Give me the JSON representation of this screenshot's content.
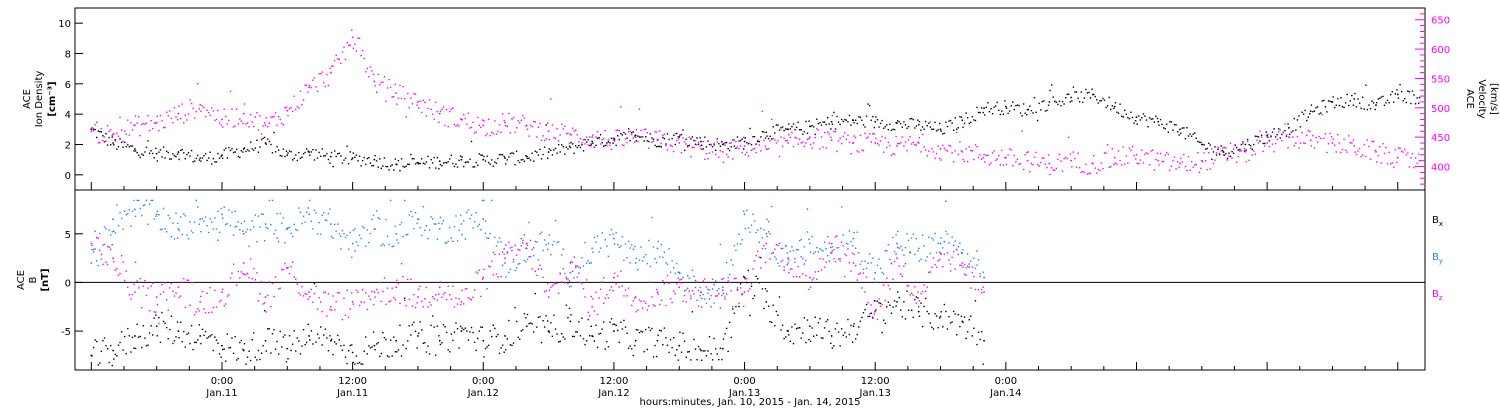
{
  "chart_data": [
    {
      "type": "scatter",
      "panel": "top",
      "ylabel_lines": [
        "ACE",
        "Ion Density",
        "[cm⁻³]"
      ],
      "y2label_lines": [
        "ACE",
        "Velocity",
        "[km/s]"
      ],
      "ylim": [
        -1,
        11
      ],
      "y2lim": [
        360,
        670
      ],
      "yticks": [
        0,
        2,
        4,
        6,
        8,
        10
      ],
      "y2ticks": [
        400,
        450,
        500,
        550,
        600,
        650
      ],
      "series": [
        {
          "axis": "left",
          "color": "#000000",
          "points": [
            [
              -12,
              3.0
            ],
            [
              -10,
              2.1
            ],
            [
              -8,
              1.7
            ],
            [
              -6,
              1.4
            ],
            [
              -4,
              1.5
            ],
            [
              -2,
              1.1
            ],
            [
              0,
              1.3
            ],
            [
              2,
              1.7
            ],
            [
              4,
              2.1
            ],
            [
              6,
              1.3
            ],
            [
              8,
              1.5
            ],
            [
              10,
              1.2
            ],
            [
              12,
              1.1
            ],
            [
              14,
              1.0
            ],
            [
              16,
              0.7
            ],
            [
              18,
              0.8
            ],
            [
              20,
              0.9
            ],
            [
              22,
              1.0
            ],
            [
              24,
              1.0
            ],
            [
              26,
              1.1
            ],
            [
              28,
              1.2
            ],
            [
              30,
              1.5
            ],
            [
              32,
              1.8
            ],
            [
              34,
              2.2
            ],
            [
              36,
              2.4
            ],
            [
              38,
              2.6
            ],
            [
              40,
              2.3
            ],
            [
              42,
              2.5
            ],
            [
              44,
              2.2
            ],
            [
              46,
              2.0
            ],
            [
              48,
              2.2
            ],
            [
              50,
              2.8
            ],
            [
              52,
              3.0
            ],
            [
              54,
              3.2
            ],
            [
              56,
              3.5
            ],
            [
              58,
              3.6
            ],
            [
              60,
              3.5
            ],
            [
              62,
              3.4
            ],
            [
              64,
              3.3
            ],
            [
              66,
              3.0
            ],
            [
              68,
              3.6
            ],
            [
              70,
              4.4
            ],
            [
              72,
              4.5
            ],
            [
              74,
              4.3
            ],
            [
              76,
              4.8
            ],
            [
              78,
              5.1
            ],
            [
              80,
              5.3
            ],
            [
              82,
              4.5
            ],
            [
              84,
              3.8
            ],
            [
              86,
              3.5
            ],
            [
              88,
              3.0
            ],
            [
              90,
              2.0
            ],
            [
              92,
              1.5
            ],
            [
              94,
              2.0
            ],
            [
              96,
              2.6
            ],
            [
              98,
              3.1
            ],
            [
              100,
              4.2
            ],
            [
              102,
              4.8
            ],
            [
              104,
              5.0
            ],
            [
              106,
              4.6
            ],
            [
              108,
              5.3
            ],
            [
              110,
              5.1
            ]
          ]
        },
        {
          "axis": "right",
          "color": "#ff00ff",
          "points": [
            [
              -12,
              460
            ],
            [
              -10,
              455
            ],
            [
              -8,
              470
            ],
            [
              -6,
              475
            ],
            [
              -4,
              490
            ],
            [
              -2,
              505
            ],
            [
              0,
              480
            ],
            [
              2,
              490
            ],
            [
              4,
              470
            ],
            [
              6,
              495
            ],
            [
              8,
              535
            ],
            [
              10,
              560
            ],
            [
              12,
              620
            ],
            [
              14,
              545
            ],
            [
              16,
              525
            ],
            [
              18,
              510
            ],
            [
              20,
              490
            ],
            [
              22,
              480
            ],
            [
              24,
              470
            ],
            [
              26,
              475
            ],
            [
              28,
              470
            ],
            [
              30,
              460
            ],
            [
              32,
              455
            ],
            [
              34,
              450
            ],
            [
              36,
              445
            ],
            [
              38,
              450
            ],
            [
              40,
              445
            ],
            [
              42,
              440
            ],
            [
              44,
              430
            ],
            [
              46,
              425
            ],
            [
              48,
              435
            ],
            [
              50,
              430
            ],
            [
              52,
              440
            ],
            [
              54,
              450
            ],
            [
              56,
              445
            ],
            [
              58,
              440
            ],
            [
              60,
              440
            ],
            [
              62,
              435
            ],
            [
              64,
              440
            ],
            [
              66,
              430
            ],
            [
              68,
              425
            ],
            [
              70,
              420
            ],
            [
              72,
              415
            ],
            [
              74,
              410
            ],
            [
              76,
              405
            ],
            [
              78,
              410
            ],
            [
              80,
              405
            ],
            [
              82,
              415
            ],
            [
              84,
              420
            ],
            [
              86,
              410
            ],
            [
              88,
              405
            ],
            [
              90,
              410
            ],
            [
              92,
              420
            ],
            [
              94,
              425
            ],
            [
              96,
              440
            ],
            [
              98,
              450
            ],
            [
              100,
              445
            ],
            [
              102,
              440
            ],
            [
              104,
              435
            ],
            [
              106,
              425
            ],
            [
              108,
              415
            ],
            [
              110,
              410
            ]
          ]
        }
      ]
    },
    {
      "type": "scatter",
      "panel": "bottom",
      "ylabel_lines": [
        "ACE",
        "B",
        "[nT]"
      ],
      "ylim": [
        -9,
        9.5
      ],
      "yticks": [
        -5,
        0,
        5
      ],
      "xlabel": "hours:minutes, Jan. 10, 2015 - Jan. 14, 2015",
      "xlim": [
        -13.5,
        110.5
      ],
      "xticks": [
        {
          "hour": 0,
          "time": "0:00",
          "date": "Jan.11"
        },
        {
          "hour": 12,
          "time": "12:00",
          "date": "Jan.11"
        },
        {
          "hour": 24,
          "time": "0:00",
          "date": "Jan.12"
        },
        {
          "hour": 36,
          "time": "12:00",
          "date": "Jan.12"
        },
        {
          "hour": 48,
          "time": "0:00",
          "date": "Jan.13"
        },
        {
          "hour": 60,
          "time": "12:00",
          "date": "Jan.13"
        },
        {
          "hour": 72,
          "time": "0:00",
          "date": "Jan.14"
        }
      ],
      "series": [
        {
          "name": "B",
          "sub": "x",
          "color": "#000000",
          "points": [
            [
              -12,
              -7.5
            ],
            [
              -10,
              -7.0
            ],
            [
              -8,
              -5.5
            ],
            [
              -6,
              -4.5
            ],
            [
              -4,
              -5.0
            ],
            [
              -2,
              -5.5
            ],
            [
              0,
              -6.5
            ],
            [
              2,
              -7.0
            ],
            [
              4,
              -6.0
            ],
            [
              6,
              -6.8
            ],
            [
              8,
              -5.5
            ],
            [
              10,
              -6.0
            ],
            [
              12,
              -7.2
            ],
            [
              14,
              -6.5
            ],
            [
              16,
              -6.0
            ],
            [
              18,
              -5.5
            ],
            [
              20,
              -6.0
            ],
            [
              22,
              -5.0
            ],
            [
              24,
              -6.0
            ],
            [
              26,
              -5.5
            ],
            [
              28,
              -4.5
            ],
            [
              30,
              -5.0
            ],
            [
              32,
              -4.0
            ],
            [
              34,
              -5.5
            ],
            [
              36,
              -5.0
            ],
            [
              38,
              -6.0
            ],
            [
              40,
              -6.0
            ],
            [
              42,
              -6.5
            ],
            [
              44,
              -7.0
            ],
            [
              46,
              -6.8
            ],
            [
              48,
              0.5
            ],
            [
              50,
              -2.0
            ],
            [
              52,
              -5.0
            ],
            [
              54,
              -4.5
            ],
            [
              56,
              -5.5
            ],
            [
              58,
              -4.5
            ],
            [
              60,
              -3.0
            ],
            [
              62,
              -2.0
            ],
            [
              64,
              -3.0
            ],
            [
              66,
              -3.5
            ],
            [
              68,
              -4.0
            ],
            [
              70,
              -6.0
            ]
          ]
        },
        {
          "name": "B",
          "sub": "y",
          "color": "#1e88e5",
          "points": [
            [
              -12,
              2.0
            ],
            [
              -10,
              6.5
            ],
            [
              -8,
              7.5
            ],
            [
              -6,
              7.0
            ],
            [
              -4,
              5.5
            ],
            [
              -2,
              6.5
            ],
            [
              0,
              7.0
            ],
            [
              2,
              5.0
            ],
            [
              4,
              6.0
            ],
            [
              6,
              5.5
            ],
            [
              8,
              7.0
            ],
            [
              10,
              6.0
            ],
            [
              12,
              4.0
            ],
            [
              14,
              5.5
            ],
            [
              16,
              5.0
            ],
            [
              18,
              6.5
            ],
            [
              20,
              5.5
            ],
            [
              22,
              6.0
            ],
            [
              24,
              6.5
            ],
            [
              26,
              2.0
            ],
            [
              28,
              3.5
            ],
            [
              30,
              4.0
            ],
            [
              32,
              1.0
            ],
            [
              34,
              3.5
            ],
            [
              36,
              4.5
            ],
            [
              38,
              2.0
            ],
            [
              40,
              3.5
            ],
            [
              42,
              1.0
            ],
            [
              44,
              -1.0
            ],
            [
              46,
              -0.5
            ],
            [
              48,
              7.0
            ],
            [
              50,
              5.0
            ],
            [
              52,
              2.0
            ],
            [
              54,
              4.0
            ],
            [
              56,
              3.0
            ],
            [
              58,
              4.5
            ],
            [
              60,
              1.0
            ],
            [
              62,
              4.0
            ],
            [
              64,
              3.5
            ],
            [
              66,
              4.0
            ],
            [
              68,
              3.0
            ],
            [
              70,
              0.5
            ]
          ]
        },
        {
          "name": "B",
          "sub": "z",
          "color": "#ff00ff",
          "points": [
            [
              -12,
              4.0
            ],
            [
              -10,
              2.5
            ],
            [
              -8,
              -1.0
            ],
            [
              -6,
              -1.5
            ],
            [
              -4,
              -0.5
            ],
            [
              -2,
              -2.0
            ],
            [
              0,
              -1.0
            ],
            [
              2,
              2.0
            ],
            [
              4,
              -1.5
            ],
            [
              6,
              1.5
            ],
            [
              8,
              -1.0
            ],
            [
              10,
              -2.5
            ],
            [
              12,
              -2.0
            ],
            [
              14,
              -1.0
            ],
            [
              16,
              -0.5
            ],
            [
              18,
              -1.5
            ],
            [
              20,
              -0.5
            ],
            [
              22,
              -2.0
            ],
            [
              24,
              0.5
            ],
            [
              26,
              2.5
            ],
            [
              28,
              4.0
            ],
            [
              30,
              -1.5
            ],
            [
              32,
              2.0
            ],
            [
              34,
              -2.5
            ],
            [
              36,
              0.5
            ],
            [
              38,
              -1.5
            ],
            [
              40,
              -1.0
            ],
            [
              42,
              -0.5
            ],
            [
              44,
              -1.0
            ],
            [
              46,
              -0.8
            ],
            [
              48,
              -1.0
            ],
            [
              50,
              4.0
            ],
            [
              52,
              2.5
            ],
            [
              54,
              0.5
            ],
            [
              56,
              4.0
            ],
            [
              58,
              2.0
            ],
            [
              60,
              -3.0
            ],
            [
              62,
              2.5
            ],
            [
              64,
              -2.5
            ],
            [
              66,
              3.0
            ],
            [
              68,
              2.0
            ],
            [
              70,
              -1.0
            ]
          ]
        }
      ]
    }
  ]
}
